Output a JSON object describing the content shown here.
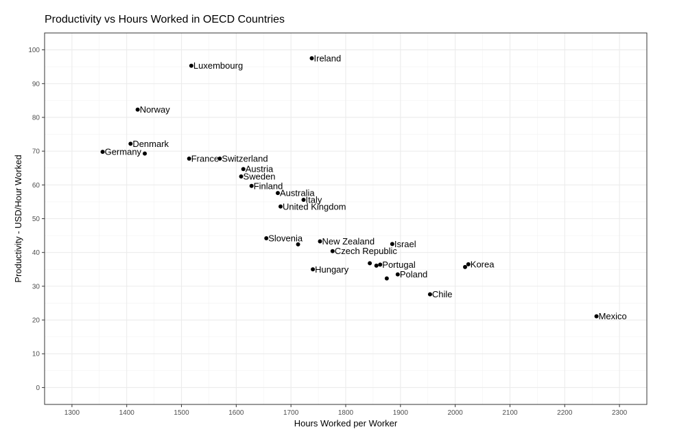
{
  "chart_data": {
    "type": "scatter",
    "title": "Productivity vs Hours Worked in OECD Countries",
    "xlabel": "Hours Worked per Worker",
    "ylabel": "Productivity - USD/Hour Worked",
    "xlim": [
      1250,
      2350
    ],
    "ylim": [
      -5,
      105
    ],
    "x_ticks": [
      1300,
      1400,
      1500,
      1600,
      1700,
      1800,
      1900,
      2000,
      2100,
      2200,
      2300
    ],
    "y_ticks": [
      0,
      10,
      20,
      30,
      40,
      50,
      60,
      70,
      80,
      90,
      100
    ],
    "grid": true,
    "legend": "none",
    "point_color": "#000000",
    "points": [
      {
        "label": "Ireland",
        "x": 1738,
        "y": 97.5
      },
      {
        "label": "Luxembourg",
        "x": 1518,
        "y": 95.3
      },
      {
        "label": "Norway",
        "x": 1420,
        "y": 82.3
      },
      {
        "label": "Denmark",
        "x": 1407,
        "y": 72.2
      },
      {
        "label": "Germany",
        "x": 1356,
        "y": 69.8
      },
      {
        "label": "",
        "x": 1433,
        "y": 69.3
      },
      {
        "label": "France",
        "x": 1514,
        "y": 67.8
      },
      {
        "label": "Switzerland",
        "x": 1570,
        "y": 67.8
      },
      {
        "label": "Austria",
        "x": 1613,
        "y": 64.7
      },
      {
        "label": "Sweden",
        "x": 1609,
        "y": 62.5
      },
      {
        "label": "Finland",
        "x": 1628,
        "y": 59.7
      },
      {
        "label": "Australia",
        "x": 1676,
        "y": 57.6
      },
      {
        "label": "Italy",
        "x": 1723,
        "y": 55.6
      },
      {
        "label": "United Kingdom",
        "x": 1681,
        "y": 53.6
      },
      {
        "label": "Slovenia",
        "x": 1655,
        "y": 44.2
      },
      {
        "label": "",
        "x": 1713,
        "y": 42.4
      },
      {
        "label": "New Zealand",
        "x": 1753,
        "y": 43.3
      },
      {
        "label": "Israel",
        "x": 1885,
        "y": 42.5
      },
      {
        "label": "Czech Republic",
        "x": 1776,
        "y": 40.4
      },
      {
        "label": "",
        "x": 1844,
        "y": 36.8
      },
      {
        "label": "",
        "x": 1856,
        "y": 36.1
      },
      {
        "label": "Portugal",
        "x": 1863,
        "y": 36.4
      },
      {
        "label": "Korea",
        "x": 2024,
        "y": 36.5
      },
      {
        "label": "",
        "x": 2018,
        "y": 35.7
      },
      {
        "label": "Hungary",
        "x": 1740,
        "y": 35.0
      },
      {
        "label": "Poland",
        "x": 1895,
        "y": 33.5
      },
      {
        "label": "",
        "x": 1875,
        "y": 32.3
      },
      {
        "label": "Chile",
        "x": 1954,
        "y": 27.6
      },
      {
        "label": "Mexico",
        "x": 2258,
        "y": 21.1
      }
    ]
  }
}
